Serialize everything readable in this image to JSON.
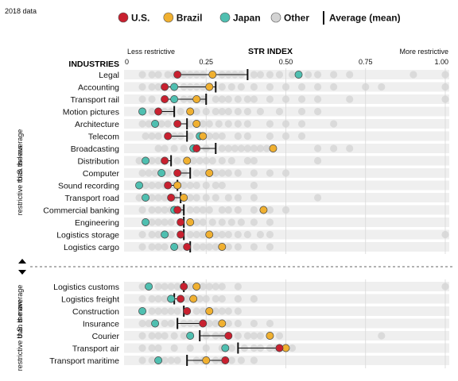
{
  "chart_data": {
    "type": "scatter",
    "note": "2018 data",
    "title": "STR INDEX",
    "x_min_label": "Less restrictive",
    "x_max_label": "More restrictive",
    "xlim": [
      0,
      1
    ],
    "x_ticks": [
      0,
      0.25,
      0.5,
      0.75,
      1.0
    ],
    "x_tick_labels": [
      "0",
      "0.25",
      "0.50",
      "0.75",
      "1.00"
    ],
    "y_header": "INDUSTRIES",
    "legend": [
      {
        "name": "U.S.",
        "color": "#c8202f"
      },
      {
        "name": "Brazil",
        "color": "#f0b030"
      },
      {
        "name": "Japan",
        "color": "#4fbfb0"
      },
      {
        "name": "Other",
        "color": "#d3d3d3"
      },
      {
        "name": "Average (mean)",
        "color": "#111111"
      }
    ],
    "group_labels": [
      "U.S. is less restrictive than the average",
      "U.S. is more restrictive than the average"
    ],
    "industries": [
      {
        "name": "Legal",
        "group": 0,
        "us": 0.16,
        "brazil": 0.27,
        "japan": 0.54,
        "avg": 0.38,
        "others": [
          0.05,
          0.08,
          0.1,
          0.13,
          0.15,
          0.18,
          0.2,
          0.22,
          0.24,
          0.3,
          0.32,
          0.34,
          0.36,
          0.4,
          0.42,
          0.45,
          0.48,
          0.52,
          0.57,
          0.6,
          0.65,
          0.7,
          0.9,
          1.0
        ]
      },
      {
        "name": "Accounting",
        "group": 0,
        "us": 0.12,
        "brazil": 0.26,
        "japan": 0.15,
        "avg": 0.28,
        "others": [
          0.05,
          0.08,
          0.1,
          0.18,
          0.2,
          0.22,
          0.24,
          0.3,
          0.33,
          0.36,
          0.4,
          0.45,
          0.5,
          0.55,
          0.6,
          0.65,
          0.75,
          0.8,
          1.0
        ]
      },
      {
        "name": "Transport rail",
        "group": 0,
        "us": 0.12,
        "brazil": 0.22,
        "japan": 0.15,
        "avg": 0.25,
        "others": [
          0.05,
          0.08,
          0.18,
          0.2,
          0.24,
          0.28,
          0.3,
          0.32,
          0.35,
          0.38,
          0.4,
          0.45,
          0.5,
          0.55,
          0.6,
          0.7,
          1.0
        ]
      },
      {
        "name": "Motion pictures",
        "group": 0,
        "us": 0.1,
        "brazil": 0.2,
        "japan": 0.05,
        "avg": 0.15,
        "others": [
          0.08,
          0.12,
          0.14,
          0.17,
          0.22,
          0.25,
          0.28,
          0.3,
          0.32,
          0.35,
          0.38,
          0.42,
          0.48,
          0.55,
          0.6
        ]
      },
      {
        "name": "Architecture",
        "group": 0,
        "us": 0.16,
        "brazil": 0.22,
        "japan": 0.09,
        "avg": 0.19,
        "others": [
          0.05,
          0.07,
          0.11,
          0.13,
          0.2,
          0.24,
          0.26,
          0.29,
          0.32,
          0.35,
          0.38,
          0.45,
          0.5,
          0.55,
          0.65
        ]
      },
      {
        "name": "Telecom",
        "group": 0,
        "us": 0.13,
        "brazil": 0.24,
        "japan": 0.23,
        "avg": 0.19,
        "others": [
          0.06,
          0.08,
          0.1,
          0.15,
          0.17,
          0.2,
          0.26,
          0.28,
          0.3,
          0.35,
          0.38,
          0.45,
          0.5,
          0.55
        ]
      },
      {
        "name": "Broadcasting",
        "group": 0,
        "us": 0.22,
        "brazil": 0.46,
        "japan": 0.21,
        "avg": 0.28,
        "others": [
          0.1,
          0.12,
          0.15,
          0.18,
          0.25,
          0.3,
          0.32,
          0.34,
          0.36,
          0.38,
          0.4,
          0.42,
          0.44,
          0.6,
          0.65,
          0.7
        ]
      },
      {
        "name": "Distribution",
        "group": 0,
        "us": 0.12,
        "brazil": 0.19,
        "japan": 0.06,
        "avg": 0.14,
        "others": [
          0.04,
          0.08,
          0.1,
          0.16,
          0.21,
          0.23,
          0.25,
          0.27,
          0.3,
          0.33,
          0.38,
          0.4,
          0.6
        ]
      },
      {
        "name": "Computer",
        "group": 0,
        "us": 0.16,
        "brazil": 0.26,
        "japan": 0.11,
        "avg": 0.2,
        "others": [
          0.05,
          0.07,
          0.09,
          0.13,
          0.18,
          0.22,
          0.24,
          0.28,
          0.3,
          0.32,
          0.35,
          0.4,
          0.45,
          0.5
        ]
      },
      {
        "name": "Sound recording",
        "group": 0,
        "us": 0.13,
        "brazil": 0.16,
        "japan": 0.04,
        "avg": 0.16,
        "others": [
          0.06,
          0.08,
          0.1,
          0.12,
          0.15,
          0.18,
          0.2,
          0.22,
          0.25,
          0.28,
          0.3,
          0.4
        ]
      },
      {
        "name": "Transport road",
        "group": 0,
        "us": 0.14,
        "brazil": 0.18,
        "japan": 0.06,
        "avg": 0.17,
        "others": [
          0.04,
          0.08,
          0.1,
          0.12,
          0.15,
          0.2,
          0.22,
          0.25,
          0.28,
          0.32,
          0.35,
          0.4,
          0.6
        ]
      },
      {
        "name": "Commercial banking",
        "group": 0,
        "us": 0.16,
        "brazil": 0.43,
        "japan": 0.15,
        "avg": 0.18,
        "others": [
          0.05,
          0.08,
          0.1,
          0.12,
          0.14,
          0.17,
          0.2,
          0.22,
          0.24,
          0.26,
          0.3,
          0.32,
          0.35,
          0.4,
          0.45,
          0.5
        ]
      },
      {
        "name": "Engineering",
        "group": 0,
        "us": 0.17,
        "brazil": 0.2,
        "japan": 0.06,
        "avg": 0.18,
        "others": [
          0.08,
          0.1,
          0.12,
          0.14,
          0.22,
          0.24,
          0.27,
          0.3,
          0.33,
          0.36,
          0.4,
          0.45
        ]
      },
      {
        "name": "Logistics storage",
        "group": 0,
        "us": 0.17,
        "brazil": 0.26,
        "japan": 0.12,
        "avg": 0.18,
        "others": [
          0.05,
          0.08,
          0.1,
          0.14,
          0.2,
          0.22,
          0.24,
          0.28,
          0.3,
          0.32,
          0.35,
          0.38,
          0.42,
          0.45,
          1.0
        ]
      },
      {
        "name": "Logistics cargo",
        "group": 0,
        "us": 0.19,
        "brazil": 0.3,
        "japan": 0.15,
        "avg": 0.2,
        "others": [
          0.05,
          0.08,
          0.1,
          0.12,
          0.17,
          0.22,
          0.24,
          0.26,
          0.28,
          0.32,
          0.35,
          0.4,
          0.45
        ]
      },
      {
        "name": "Logistics customs",
        "group": 1,
        "us": 0.18,
        "brazil": 0.22,
        "japan": 0.07,
        "avg": 0.18,
        "others": [
          0.05,
          0.1,
          0.12,
          0.14,
          0.16,
          0.2,
          0.24,
          0.26,
          0.28,
          0.3,
          0.35,
          1.0
        ]
      },
      {
        "name": "Logistics freight",
        "group": 1,
        "us": 0.17,
        "brazil": 0.21,
        "japan": 0.14,
        "avg": 0.15,
        "others": [
          0.05,
          0.08,
          0.1,
          0.12,
          0.19,
          0.23,
          0.25,
          0.28,
          0.3,
          0.35,
          0.4
        ]
      },
      {
        "name": "Construction",
        "group": 1,
        "us": 0.19,
        "brazil": 0.26,
        "japan": 0.05,
        "avg": 0.18,
        "others": [
          0.08,
          0.1,
          0.12,
          0.14,
          0.16,
          0.22,
          0.24,
          0.28,
          0.3,
          0.32,
          0.35
        ]
      },
      {
        "name": "Insurance",
        "group": 1,
        "us": 0.24,
        "brazil": 0.3,
        "japan": 0.09,
        "avg": 0.16,
        "others": [
          0.05,
          0.07,
          0.12,
          0.14,
          0.18,
          0.2,
          0.22,
          0.26,
          0.28,
          0.32,
          0.35,
          0.4,
          0.45
        ]
      },
      {
        "name": "Courier",
        "group": 1,
        "us": 0.32,
        "brazil": 0.45,
        "japan": 0.2,
        "avg": 0.23,
        "others": [
          0.05,
          0.08,
          0.1,
          0.12,
          0.15,
          0.18,
          0.25,
          0.28,
          0.3,
          0.35,
          0.38,
          0.4,
          0.42,
          0.48,
          0.8
        ]
      },
      {
        "name": "Transport air",
        "group": 1,
        "us": 0.48,
        "brazil": 0.5,
        "japan": 0.31,
        "avg": 0.35,
        "others": [
          0.05,
          0.08,
          0.1,
          0.15,
          0.2,
          0.25,
          0.3,
          0.33,
          0.37,
          0.4,
          0.42,
          0.45,
          0.47,
          0.52
        ]
      },
      {
        "name": "Transport maritime",
        "group": 1,
        "us": 0.31,
        "brazil": 0.25,
        "japan": 0.1,
        "avg": 0.19,
        "others": [
          0.05,
          0.08,
          0.12,
          0.14,
          0.16,
          0.22,
          0.24,
          0.28,
          0.3,
          0.33,
          0.36,
          0.4
        ]
      }
    ]
  }
}
